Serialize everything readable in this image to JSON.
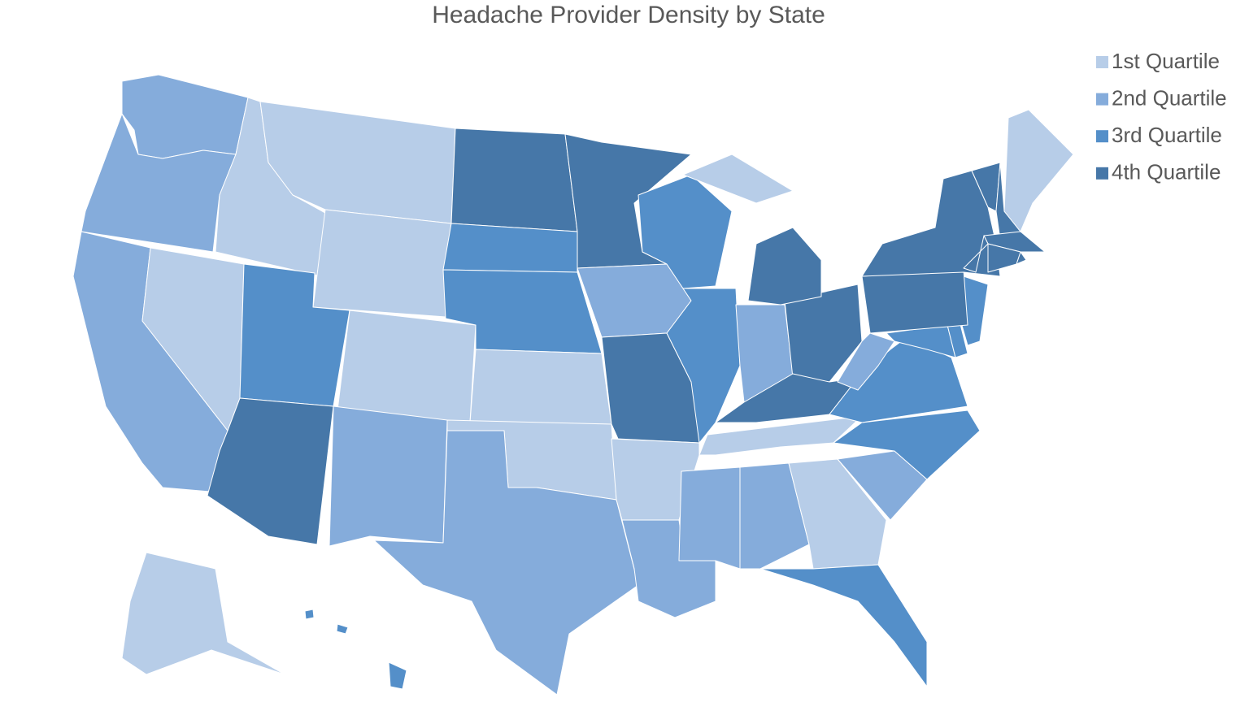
{
  "title": "Headache Provider Density by State",
  "legend": [
    {
      "label": "1st Quartile",
      "color": "#b7cde8"
    },
    {
      "label": "2nd Quartile",
      "color": "#85acdb"
    },
    {
      "label": "3rd Quartile",
      "color": "#548fc9"
    },
    {
      "label": "4th Quartile",
      "color": "#4677a8"
    }
  ],
  "regions": [
    2,
    2,
    2,
    1,
    1,
    1,
    1,
    3,
    4,
    1,
    2,
    4,
    3,
    3,
    1,
    1,
    2,
    4,
    2,
    4,
    1,
    2,
    3,
    3,
    2,
    4,
    2,
    4,
    4,
    1,
    2,
    1,
    1,
    3,
    2,
    3,
    3,
    2,
    3,
    3,
    3,
    4,
    4,
    4,
    4,
    1,
    4,
    4,
    4,
    4,
    1,
    3,
    3,
    3
  ]
}
